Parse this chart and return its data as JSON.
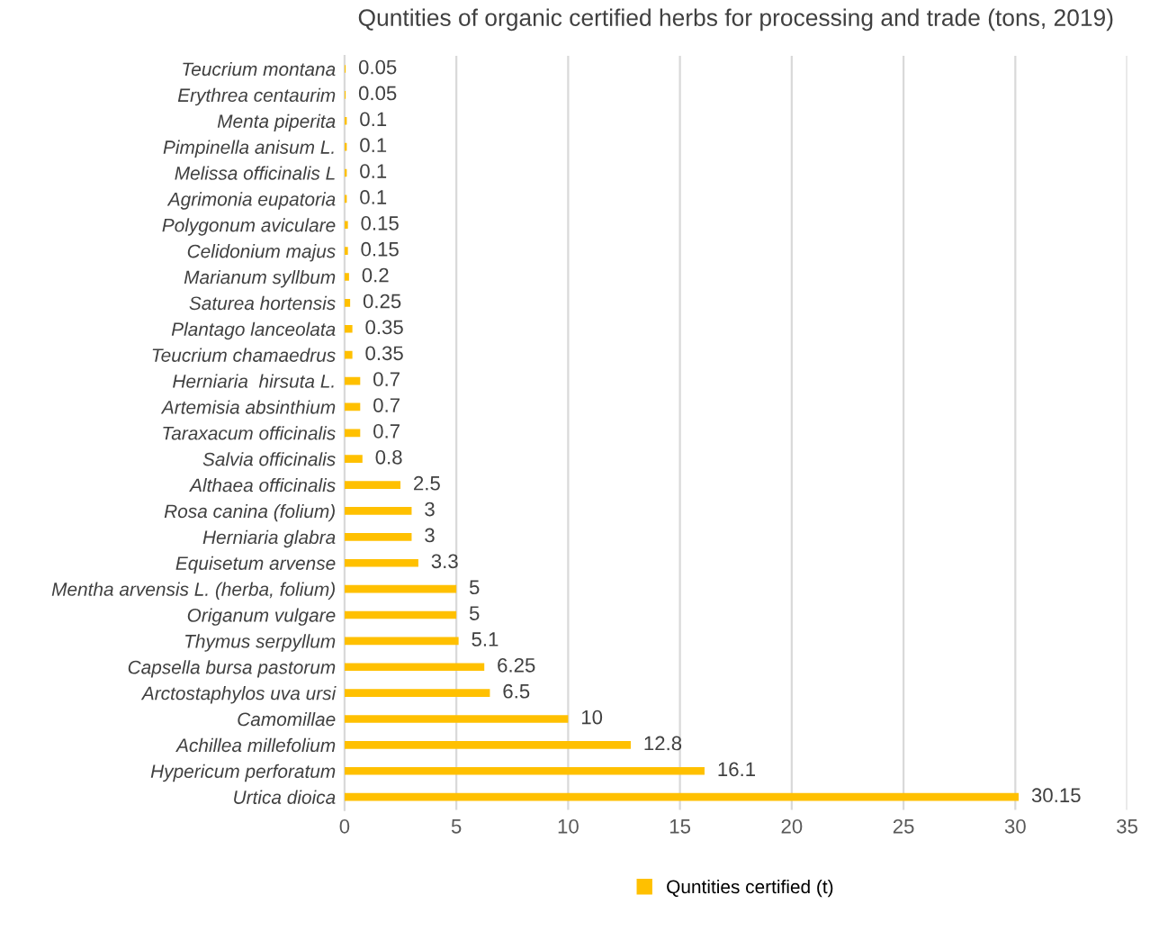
{
  "chart_data": {
    "type": "bar",
    "orientation": "horizontal",
    "title": "Quntities of organic certified herbs for processing and trade (tons, 2019)",
    "categories": [
      "Teucrium montana",
      "Erythrea centaurim",
      "Menta piperita",
      "Pimpinella anisum L.",
      "Melissa officinalis L",
      "Agrimonia eupatoria",
      "Polygonum aviculare",
      "Celidonium majus",
      "Marianum syllbum",
      "Saturea hortensis",
      "Plantago lanceolata",
      "Teucrium chamaedrus",
      "Herniaria  hirsuta L.",
      "Artemisia absinthium",
      "Taraxacum officinalis",
      "Salvia officinalis",
      "Althaea officinalis",
      "Rosa canina (folium)",
      "Herniaria glabra",
      "Equisetum arvense",
      "Mentha arvensis L. (herba, folium)",
      "Origanum vulgare",
      "Thymus serpyllum",
      "Capsella bursa pastorum",
      "Arctostaphylos uva ursi",
      "Camomillae",
      "Achillea millefolium",
      "Hypericum perforatum",
      "Urtica dioica"
    ],
    "series": [
      {
        "name": "Quntities certified (t)",
        "color": "#ffc000",
        "values": [
          0.05,
          0.05,
          0.1,
          0.1,
          0.1,
          0.1,
          0.15,
          0.15,
          0.2,
          0.25,
          0.35,
          0.35,
          0.7,
          0.7,
          0.7,
          0.8,
          2.5,
          3,
          3,
          3.3,
          5,
          5,
          5.1,
          6.25,
          6.5,
          10,
          12.8,
          16.1,
          30.15
        ]
      }
    ],
    "xlim": [
      0,
      35
    ],
    "xticks": [
      0,
      5,
      10,
      15,
      20,
      25,
      30,
      35
    ],
    "grid": "x",
    "legend": "bottom",
    "data_labels": true
  }
}
